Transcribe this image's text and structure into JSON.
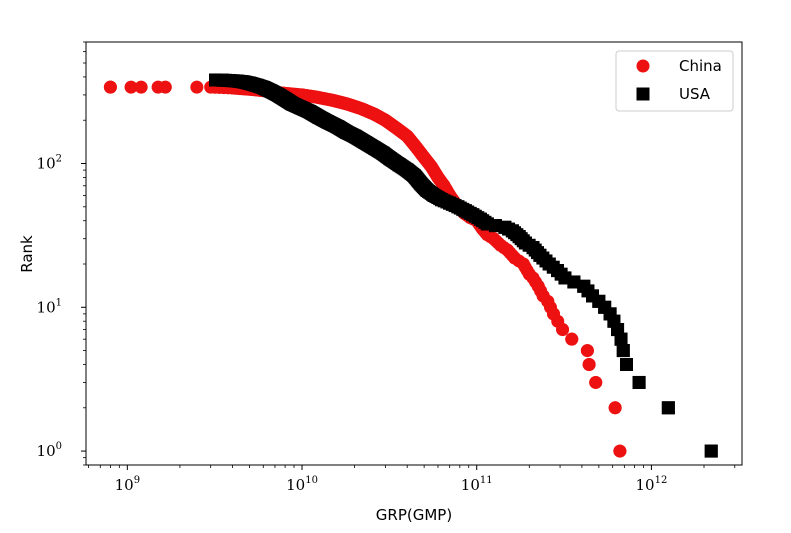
{
  "chart_data": {
    "type": "scatter",
    "xlabel": "GRP(GMP)",
    "ylabel": "Rank",
    "x_scale": "log",
    "y_scale": "log",
    "xlim": [
      580000000,
      3300000000000
    ],
    "ylim": [
      0.8,
      700
    ],
    "x_ticks": [
      {
        "value": 1000000000,
        "base": "10",
        "exp": "9"
      },
      {
        "value": 10000000000,
        "base": "10",
        "exp": "10"
      },
      {
        "value": 100000000000,
        "base": "10",
        "exp": "11"
      },
      {
        "value": 1000000000000,
        "base": "10",
        "exp": "12"
      }
    ],
    "y_ticks": [
      {
        "value": 1,
        "base": "10",
        "exp": "0"
      },
      {
        "value": 10,
        "base": "10",
        "exp": "1"
      },
      {
        "value": 100,
        "base": "10",
        "exp": "2"
      }
    ],
    "legend": {
      "placement": "top-right",
      "entries": [
        {
          "label": "China",
          "marker": "circle",
          "color": "#ee1111"
        },
        {
          "label": "USA",
          "marker": "square",
          "color": "#000000"
        }
      ]
    },
    "series": [
      {
        "name": "China",
        "marker": "circle",
        "color": "#ee1111",
        "n": 340,
        "points": [
          [
            800000000,
            340
          ],
          [
            1050000000,
            340
          ],
          [
            1200000000,
            340
          ],
          [
            1500000000,
            340
          ],
          [
            1650000000,
            340
          ],
          [
            2500000000,
            340
          ],
          [
            3000000000,
            340
          ],
          [
            4000000000,
            335
          ],
          [
            5500000000,
            325
          ],
          [
            7500000000,
            310
          ],
          [
            10000000000,
            300
          ],
          [
            12000000000,
            290
          ],
          [
            15000000000,
            275
          ],
          [
            18000000000,
            260
          ],
          [
            22000000000,
            240
          ],
          [
            26000000000,
            220
          ],
          [
            30000000000,
            200
          ],
          [
            35000000000,
            175
          ],
          [
            40000000000,
            155
          ],
          [
            45000000000,
            130
          ],
          [
            50000000000,
            110
          ],
          [
            55000000000,
            95
          ],
          [
            60000000000,
            80
          ],
          [
            65000000000,
            70
          ],
          [
            70000000000,
            60
          ],
          [
            78000000000,
            50
          ],
          [
            85000000000,
            45
          ],
          [
            92000000000,
            42
          ],
          [
            100000000000,
            40
          ],
          [
            108000000000,
            35
          ],
          [
            115000000000,
            32
          ],
          [
            125000000000,
            30
          ],
          [
            137000000000,
            27
          ],
          [
            150000000000,
            25
          ],
          [
            165000000000,
            22
          ],
          [
            185000000000,
            20
          ],
          [
            200000000000,
            17
          ],
          [
            210000000000,
            16
          ],
          [
            225000000000,
            14
          ],
          [
            240000000000,
            12
          ],
          [
            255000000000,
            11
          ],
          [
            275000000000,
            9
          ],
          [
            310000000000,
            7
          ],
          [
            350000000000,
            6
          ],
          [
            430000000000,
            5
          ],
          [
            440000000000,
            4
          ],
          [
            480000000000,
            3
          ],
          [
            620000000000,
            2
          ],
          [
            660000000000,
            1
          ]
        ]
      },
      {
        "name": "USA",
        "marker": "square",
        "color": "#000000",
        "n": 381,
        "points": [
          [
            3200000000,
            381
          ],
          [
            3500000000,
            380
          ],
          [
            3800000000,
            378
          ],
          [
            4200000000,
            375
          ],
          [
            4600000000,
            370
          ],
          [
            5000000000,
            362
          ],
          [
            5500000000,
            350
          ],
          [
            6000000000,
            338
          ],
          [
            6600000000,
            320
          ],
          [
            7300000000,
            300
          ],
          [
            8000000000,
            280
          ],
          [
            8800000000,
            260
          ],
          [
            9800000000,
            245
          ],
          [
            11000000000,
            230
          ],
          [
            12500000000,
            210
          ],
          [
            14000000000,
            195
          ],
          [
            16000000000,
            180
          ],
          [
            18000000000,
            165
          ],
          [
            20000000000,
            155
          ],
          [
            23000000000,
            140
          ],
          [
            26000000000,
            128
          ],
          [
            29000000000,
            118
          ],
          [
            32000000000,
            108
          ],
          [
            36000000000,
            98
          ],
          [
            40000000000,
            90
          ],
          [
            44000000000,
            82
          ],
          [
            48000000000,
            72
          ],
          [
            52000000000,
            65
          ],
          [
            57000000000,
            60
          ],
          [
            63000000000,
            56
          ],
          [
            70000000000,
            53
          ],
          [
            78000000000,
            50
          ],
          [
            86000000000,
            47
          ],
          [
            95000000000,
            44
          ],
          [
            105000000000,
            41
          ],
          [
            115000000000,
            38
          ],
          [
            128000000000,
            37
          ],
          [
            145000000000,
            36
          ],
          [
            160000000000,
            34
          ],
          [
            175000000000,
            31
          ],
          [
            190000000000,
            28
          ],
          [
            210000000000,
            26
          ],
          [
            230000000000,
            23
          ],
          [
            260000000000,
            20
          ],
          [
            290000000000,
            18
          ],
          [
            320000000000,
            16
          ],
          [
            360000000000,
            15
          ],
          [
            410000000000,
            14
          ],
          [
            460000000000,
            12
          ],
          [
            500000000000,
            11
          ],
          [
            540000000000,
            10
          ],
          [
            580000000000,
            9
          ],
          [
            610000000000,
            8
          ],
          [
            640000000000,
            7
          ],
          [
            670000000000,
            6
          ],
          [
            690000000000,
            5
          ],
          [
            720000000000,
            4
          ],
          [
            850000000000,
            3
          ],
          [
            1250000000000,
            2
          ],
          [
            2200000000000,
            1
          ]
        ]
      }
    ]
  }
}
